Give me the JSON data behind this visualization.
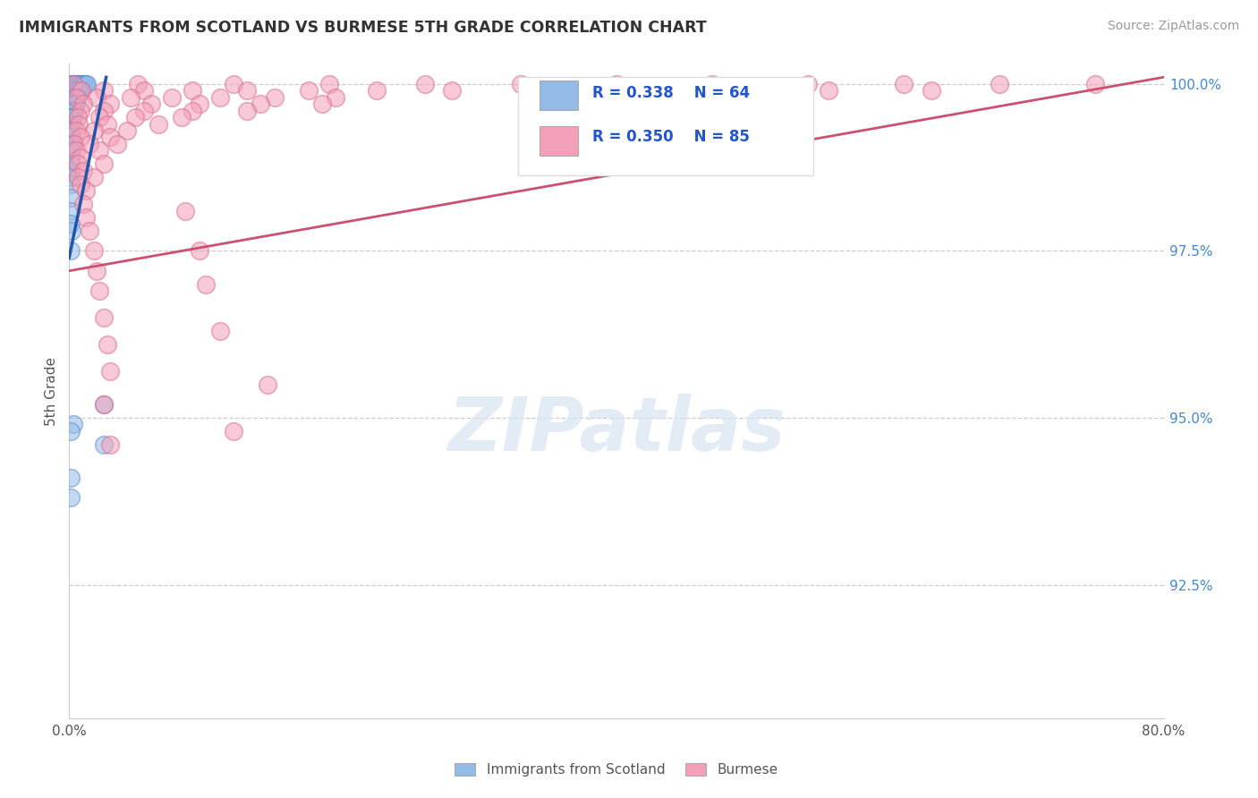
{
  "title": "IMMIGRANTS FROM SCOTLAND VS BURMESE 5TH GRADE CORRELATION CHART",
  "source_text": "Source: ZipAtlas.com",
  "ylabel": "5th Grade",
  "watermark": "ZIPatlas",
  "legend_label_blue": "Immigrants from Scotland",
  "legend_label_pink": "Burmese",
  "xlim": [
    0.0,
    0.8
  ],
  "ylim": [
    0.905,
    1.003
  ],
  "x_ticks": [
    0.0,
    0.2,
    0.4,
    0.6,
    0.8
  ],
  "x_tick_labels": [
    "0.0%",
    "",
    "",
    "",
    "80.0%"
  ],
  "y_ticks": [
    0.925,
    0.95,
    0.975,
    1.0
  ],
  "y_tick_labels": [
    "92.5%",
    "95.0%",
    "97.5%",
    "100.0%"
  ],
  "blue_R": 0.338,
  "blue_N": 64,
  "pink_R": 0.35,
  "pink_N": 85,
  "blue_color": "#92BBE8",
  "pink_color": "#F4A0B8",
  "blue_edge_color": "#6090CC",
  "pink_edge_color": "#D87090",
  "blue_line_color": "#2255AA",
  "pink_line_color": "#CC5070",
  "blue_scatter": [
    [
      0.001,
      1.0
    ],
    [
      0.002,
      1.0
    ],
    [
      0.003,
      1.0
    ],
    [
      0.004,
      1.0
    ],
    [
      0.005,
      1.0
    ],
    [
      0.006,
      1.0
    ],
    [
      0.007,
      1.0
    ],
    [
      0.008,
      1.0
    ],
    [
      0.009,
      1.0
    ],
    [
      0.01,
      1.0
    ],
    [
      0.011,
      1.0
    ],
    [
      0.012,
      1.0
    ],
    [
      0.013,
      1.0
    ],
    [
      0.001,
      0.999
    ],
    [
      0.002,
      0.999
    ],
    [
      0.003,
      0.999
    ],
    [
      0.004,
      0.999
    ],
    [
      0.005,
      0.999
    ],
    [
      0.006,
      0.999
    ],
    [
      0.007,
      0.999
    ],
    [
      0.008,
      0.999
    ],
    [
      0.001,
      0.998
    ],
    [
      0.002,
      0.998
    ],
    [
      0.003,
      0.998
    ],
    [
      0.004,
      0.998
    ],
    [
      0.005,
      0.998
    ],
    [
      0.006,
      0.998
    ],
    [
      0.001,
      0.997
    ],
    [
      0.002,
      0.997
    ],
    [
      0.003,
      0.997
    ],
    [
      0.004,
      0.997
    ],
    [
      0.005,
      0.997
    ],
    [
      0.001,
      0.996
    ],
    [
      0.002,
      0.996
    ],
    [
      0.003,
      0.996
    ],
    [
      0.004,
      0.996
    ],
    [
      0.001,
      0.995
    ],
    [
      0.002,
      0.995
    ],
    [
      0.003,
      0.995
    ],
    [
      0.001,
      0.994
    ],
    [
      0.002,
      0.994
    ],
    [
      0.001,
      0.993
    ],
    [
      0.002,
      0.993
    ],
    [
      0.001,
      0.992
    ],
    [
      0.002,
      0.992
    ],
    [
      0.001,
      0.991
    ],
    [
      0.001,
      0.99
    ],
    [
      0.002,
      0.99
    ],
    [
      0.001,
      0.989
    ],
    [
      0.001,
      0.988
    ],
    [
      0.001,
      0.987
    ],
    [
      0.001,
      0.986
    ],
    [
      0.001,
      0.985
    ],
    [
      0.001,
      0.983
    ],
    [
      0.001,
      0.981
    ],
    [
      0.001,
      0.979
    ],
    [
      0.002,
      0.978
    ],
    [
      0.001,
      0.975
    ],
    [
      0.025,
      0.952
    ],
    [
      0.003,
      0.949
    ],
    [
      0.001,
      0.948
    ],
    [
      0.025,
      0.946
    ],
    [
      0.001,
      0.941
    ],
    [
      0.001,
      0.938
    ]
  ],
  "pink_scatter": [
    [
      0.003,
      1.0
    ],
    [
      0.05,
      1.0
    ],
    [
      0.12,
      1.0
    ],
    [
      0.19,
      1.0
    ],
    [
      0.26,
      1.0
    ],
    [
      0.33,
      1.0
    ],
    [
      0.4,
      1.0
    ],
    [
      0.47,
      1.0
    ],
    [
      0.54,
      1.0
    ],
    [
      0.61,
      1.0
    ],
    [
      0.68,
      1.0
    ],
    [
      0.75,
      1.0
    ],
    [
      0.009,
      0.999
    ],
    [
      0.025,
      0.999
    ],
    [
      0.055,
      0.999
    ],
    [
      0.09,
      0.999
    ],
    [
      0.13,
      0.999
    ],
    [
      0.175,
      0.999
    ],
    [
      0.225,
      0.999
    ],
    [
      0.28,
      0.999
    ],
    [
      0.34,
      0.999
    ],
    [
      0.41,
      0.999
    ],
    [
      0.48,
      0.999
    ],
    [
      0.555,
      0.999
    ],
    [
      0.63,
      0.999
    ],
    [
      0.005,
      0.998
    ],
    [
      0.02,
      0.998
    ],
    [
      0.045,
      0.998
    ],
    [
      0.075,
      0.998
    ],
    [
      0.11,
      0.998
    ],
    [
      0.15,
      0.998
    ],
    [
      0.195,
      0.998
    ],
    [
      0.01,
      0.997
    ],
    [
      0.03,
      0.997
    ],
    [
      0.06,
      0.997
    ],
    [
      0.095,
      0.997
    ],
    [
      0.14,
      0.997
    ],
    [
      0.185,
      0.997
    ],
    [
      0.008,
      0.996
    ],
    [
      0.025,
      0.996
    ],
    [
      0.055,
      0.996
    ],
    [
      0.09,
      0.996
    ],
    [
      0.13,
      0.996
    ],
    [
      0.006,
      0.995
    ],
    [
      0.022,
      0.995
    ],
    [
      0.048,
      0.995
    ],
    [
      0.082,
      0.995
    ],
    [
      0.007,
      0.994
    ],
    [
      0.028,
      0.994
    ],
    [
      0.065,
      0.994
    ],
    [
      0.005,
      0.993
    ],
    [
      0.018,
      0.993
    ],
    [
      0.042,
      0.993
    ],
    [
      0.008,
      0.992
    ],
    [
      0.03,
      0.992
    ],
    [
      0.004,
      0.991
    ],
    [
      0.015,
      0.991
    ],
    [
      0.035,
      0.991
    ],
    [
      0.005,
      0.99
    ],
    [
      0.022,
      0.99
    ],
    [
      0.008,
      0.989
    ],
    [
      0.006,
      0.988
    ],
    [
      0.025,
      0.988
    ],
    [
      0.01,
      0.987
    ],
    [
      0.006,
      0.986
    ],
    [
      0.018,
      0.986
    ],
    [
      0.008,
      0.985
    ],
    [
      0.012,
      0.984
    ],
    [
      0.01,
      0.982
    ],
    [
      0.012,
      0.98
    ],
    [
      0.015,
      0.978
    ],
    [
      0.018,
      0.975
    ],
    [
      0.02,
      0.972
    ],
    [
      0.022,
      0.969
    ],
    [
      0.025,
      0.965
    ],
    [
      0.028,
      0.961
    ],
    [
      0.03,
      0.957
    ],
    [
      0.025,
      0.952
    ],
    [
      0.12,
      0.948
    ],
    [
      0.03,
      0.946
    ],
    [
      0.11,
      0.963
    ],
    [
      0.1,
      0.97
    ],
    [
      0.095,
      0.975
    ],
    [
      0.085,
      0.981
    ],
    [
      0.145,
      0.955
    ]
  ],
  "blue_trend_x": [
    0.0,
    0.027
  ],
  "blue_trend_y": [
    0.974,
    1.001
  ],
  "pink_trend_x": [
    0.0,
    0.8
  ],
  "pink_trend_y": [
    0.972,
    1.001
  ]
}
